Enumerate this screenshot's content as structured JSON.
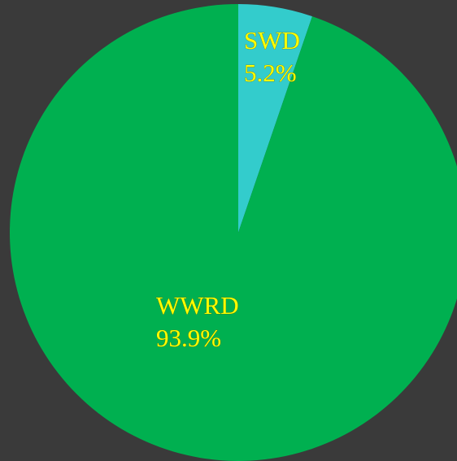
{
  "chart_data": {
    "type": "pie",
    "categories": [
      "SWD",
      "WWRD"
    ],
    "values": [
      5.2,
      93.9
    ],
    "value_labels": [
      "5.2%",
      "93.9%"
    ],
    "colors": [
      "#33cccc",
      "#00b050"
    ]
  }
}
